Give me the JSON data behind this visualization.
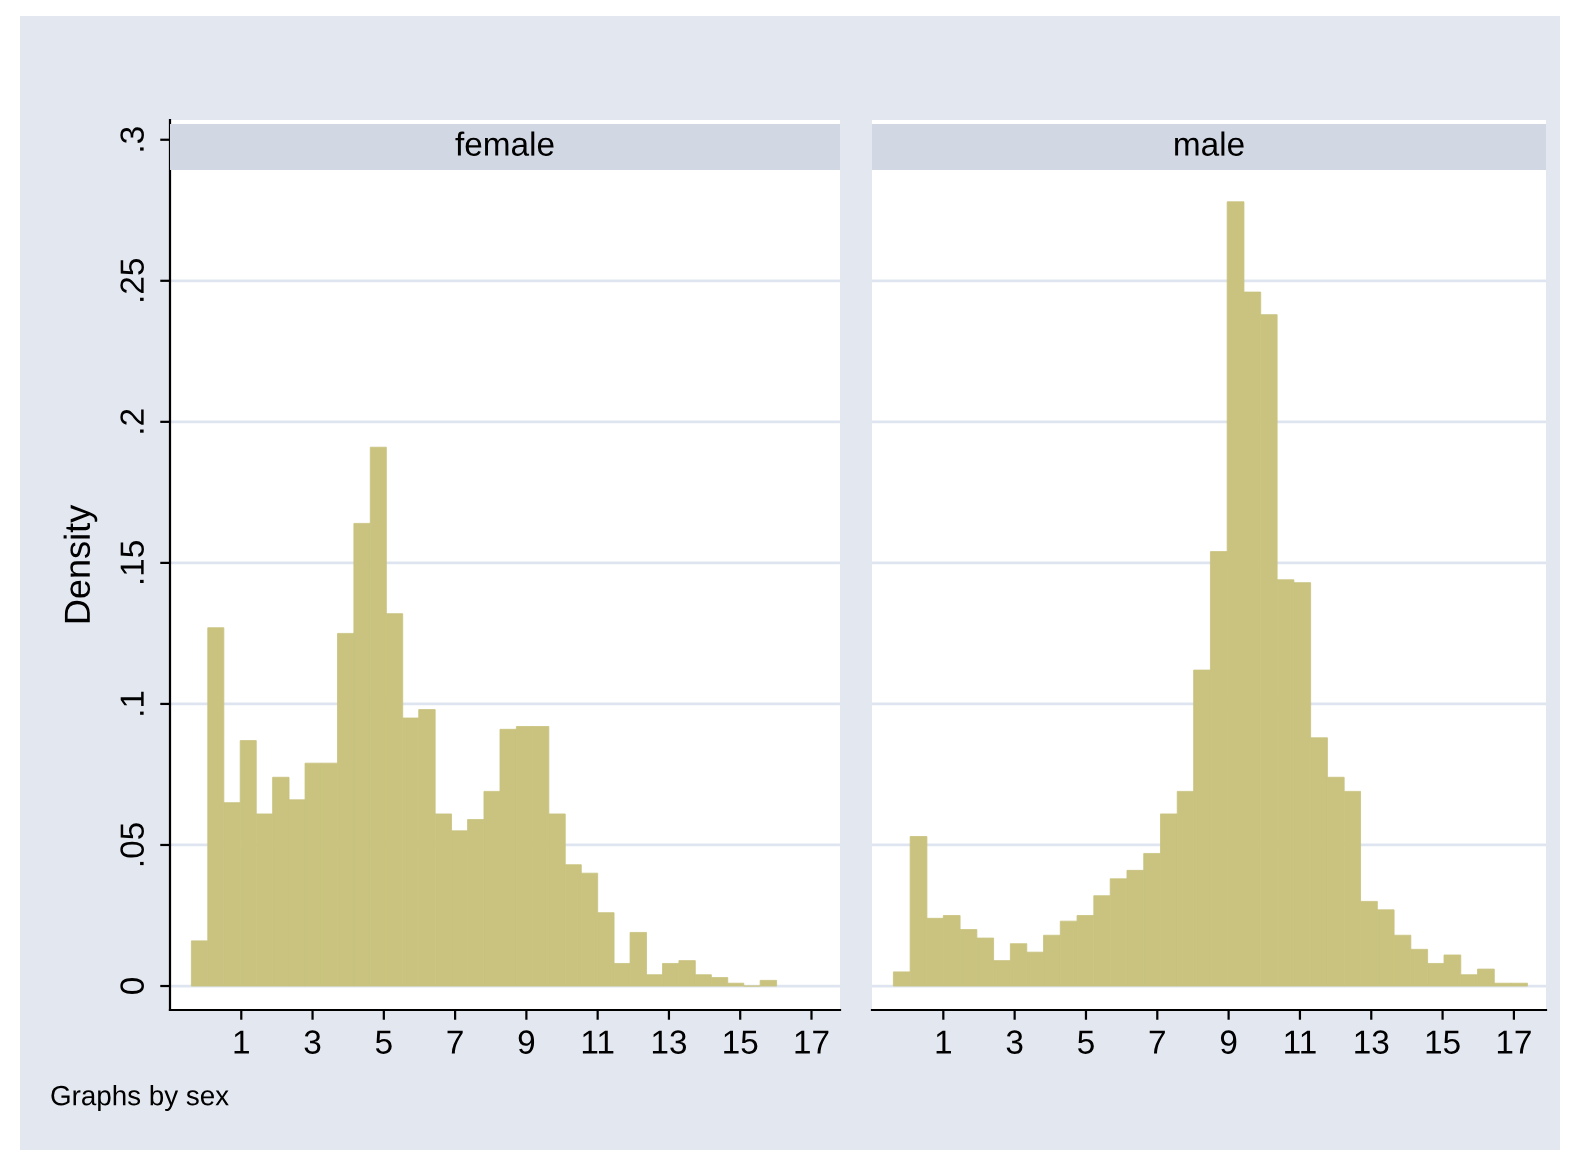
{
  "chart_data": [
    {
      "type": "histogram",
      "title": "female",
      "ylabel": "Density",
      "color": "#c9c37f",
      "bins": [
        -0.4,
        0.06,
        0.51,
        0.97,
        1.42,
        1.88,
        2.34,
        2.79,
        3.25,
        3.7,
        4.16,
        4.62,
        5.07,
        5.53,
        5.98,
        6.44,
        6.9,
        7.35,
        7.81,
        8.26,
        8.72,
        9.18,
        9.63,
        10.09,
        10.54,
        11.0,
        11.46,
        11.91,
        12.37,
        12.82,
        13.28,
        13.74,
        14.19,
        14.65,
        15.1,
        15.56,
        16.02
      ],
      "values": [
        0.016,
        0.127,
        0.065,
        0.087,
        0.061,
        0.074,
        0.066,
        0.079,
        0.079,
        0.125,
        0.164,
        0.191,
        0.132,
        0.095,
        0.098,
        0.061,
        0.055,
        0.059,
        0.069,
        0.091,
        0.092,
        0.092,
        0.061,
        0.043,
        0.04,
        0.026,
        0.008,
        0.019,
        0.004,
        0.008,
        0.009,
        0.004,
        0.003,
        0.001,
        0,
        0.002
      ],
      "xlim": [
        -1,
        17.8
      ],
      "xticks": [
        1,
        3,
        5,
        7,
        9,
        11,
        13,
        15,
        17
      ],
      "ylim": [
        -0.0085,
        0.307
      ],
      "yticks": [
        0,
        {
          "value": 0.05,
          "label": ".05"
        },
        {
          "value": 0.1,
          "label": ".1"
        },
        {
          "value": 0.15,
          "label": ".15"
        },
        {
          "value": 0.2,
          "label": ".2"
        },
        {
          "value": 0.25,
          "label": ".25"
        },
        {
          "value": 0.3,
          "label": ".3"
        }
      ],
      "grid": "y",
      "annotations": [
        "Graphs by sex"
      ]
    },
    {
      "type": "histogram",
      "title": "male",
      "color": "#c9c37f",
      "bins": [
        -0.4,
        0.07,
        0.54,
        1.0,
        1.47,
        1.94,
        2.41,
        2.88,
        3.34,
        3.81,
        4.28,
        4.75,
        5.22,
        5.68,
        6.15,
        6.62,
        7.09,
        7.56,
        8.02,
        8.49,
        8.96,
        9.43,
        9.9,
        10.36,
        10.83,
        11.3,
        11.77,
        12.24,
        12.7,
        13.17,
        13.64,
        14.11,
        14.58,
        15.04,
        15.51,
        15.98,
        16.45,
        16.92,
        17.38
      ],
      "values": [
        0.005,
        0.053,
        0.024,
        0.025,
        0.02,
        0.017,
        0.009,
        0.015,
        0.012,
        0.018,
        0.023,
        0.025,
        0.032,
        0.038,
        0.041,
        0.047,
        0.061,
        0.069,
        0.112,
        0.154,
        0.278,
        0.246,
        0.238,
        0.144,
        0.143,
        0.088,
        0.074,
        0.069,
        0.03,
        0.027,
        0.018,
        0.013,
        0.008,
        0.011,
        0.004,
        0.006,
        0.001,
        0.001
      ],
      "xlim": [
        -1,
        17.9
      ],
      "xticks": [
        1,
        3,
        5,
        7,
        9,
        11,
        13,
        15,
        17
      ],
      "ylim": [
        -0.0085,
        0.307
      ],
      "yticks": [
        {
          "value": 0,
          "label": null
        },
        {
          "value": 0.05,
          "label": null
        },
        {
          "value": 0.1,
          "label": null
        },
        {
          "value": 0.15,
          "label": null
        },
        {
          "value": 0.2,
          "label": null
        },
        {
          "value": 0.25,
          "label": null
        },
        {
          "value": 0.3,
          "label": null
        }
      ],
      "grid": "y",
      "tick_labels": "x"
    }
  ]
}
